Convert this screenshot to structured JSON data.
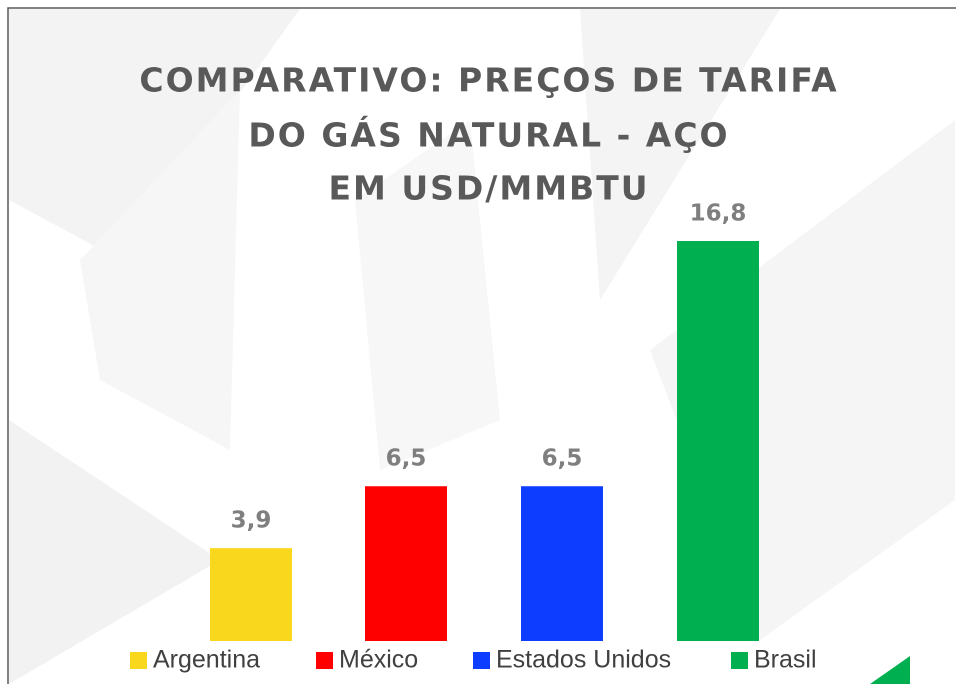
{
  "chart_data": {
    "type": "bar",
    "title": [
      "COMPARATIVO: PREÇOS DE TARIFA",
      "DO GÁS NATURAL - AÇO",
      "EM USD/MMBTU"
    ],
    "categories": [
      "Argentina",
      "México",
      "Estados Unidos",
      "Brasil"
    ],
    "values": [
      3.9,
      6.5,
      6.5,
      16.8
    ],
    "value_labels": [
      "3,9",
      "6,5",
      "6,5",
      "16,8"
    ],
    "colors": [
      "#f9d71c",
      "#ff0000",
      "#0d3dff",
      "#00b050"
    ]
  }
}
